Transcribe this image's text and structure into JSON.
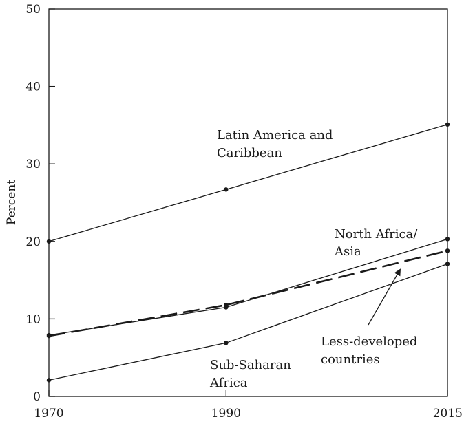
{
  "chart_data": {
    "type": "line",
    "title": "",
    "xlabel": "",
    "ylabel": "Percent",
    "x": [
      1970,
      1990,
      2015
    ],
    "xticks": [
      "1970",
      "1990",
      "2015"
    ],
    "xlim": [
      1970,
      2015
    ],
    "ylim": [
      0,
      50
    ],
    "yticks": [
      "0",
      "10",
      "20",
      "30",
      "40",
      "50"
    ],
    "grid": false,
    "series": [
      {
        "key": "lac",
        "name": "Latin America and Caribbean",
        "values": [
          20.0,
          26.7,
          35.1
        ],
        "style": "solid",
        "color": "#1a1a1a"
      },
      {
        "key": "nafa",
        "name": "North Africa/ Asia",
        "values": [
          7.9,
          11.5,
          20.3
        ],
        "style": "solid",
        "color": "#1a1a1a"
      },
      {
        "key": "ldc",
        "name": "Less-developed countries",
        "values": [
          7.8,
          11.8,
          18.8
        ],
        "style": "dashed",
        "color": "#1a1a1a"
      },
      {
        "key": "ssa",
        "name": "Sub-Saharan Africa",
        "values": [
          2.1,
          6.9,
          17.1
        ],
        "style": "solid",
        "color": "#1a1a1a"
      }
    ],
    "annotations": {
      "lac": [
        "Latin America and",
        "Caribbean"
      ],
      "nafa": [
        "North Africa/",
        "Asia"
      ],
      "ldc": [
        "Less-developed",
        "countries"
      ],
      "ssa": [
        "Sub-Saharan",
        "Africa"
      ]
    }
  }
}
